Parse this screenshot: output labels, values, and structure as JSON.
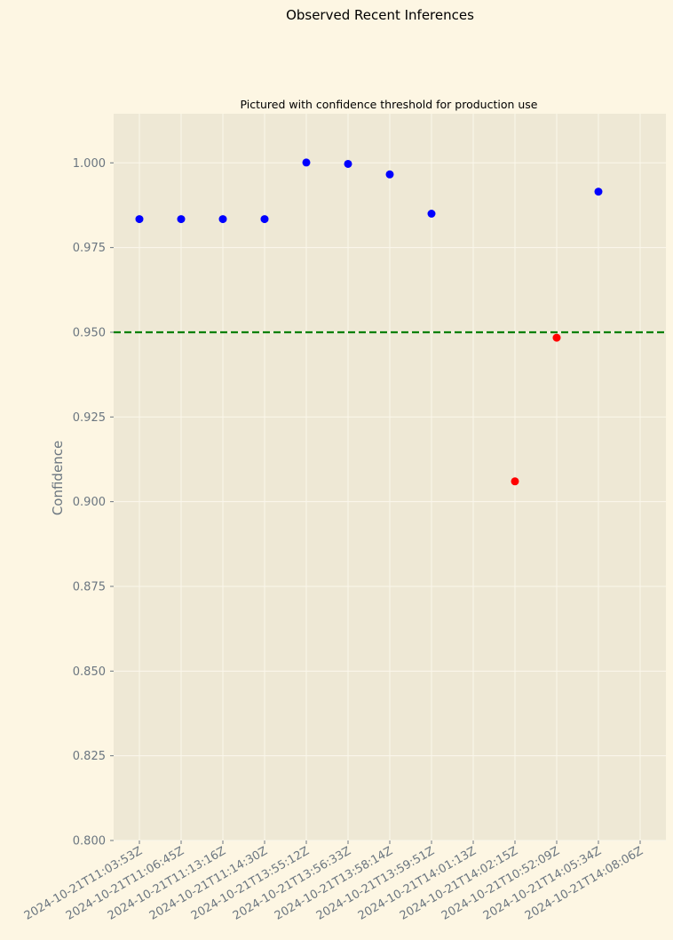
{
  "chart_data": {
    "type": "scatter",
    "suptitle": "Observed Recent Inferences",
    "title": "Pictured with confidence threshold for production use",
    "xlabel": "",
    "ylabel": "Confidence",
    "categories": [
      "2024-10-21T11:03:53Z",
      "2024-10-21T11:06:45Z",
      "2024-10-21T11:13:16Z",
      "2024-10-21T11:14:30Z",
      "2024-10-21T13:55:12Z",
      "2024-10-21T13:56:33Z",
      "2024-10-21T13:58:14Z",
      "2024-10-21T13:59:51Z",
      "2024-10-21T14:01:13Z",
      "2024-10-21T14:02:15Z",
      "2024-10-21T10:52:09Z",
      "2024-10-21T14:05:34Z",
      "2024-10-21T14:08:06Z"
    ],
    "points": [
      {
        "x": "2024-10-21T11:03:53Z",
        "y": 0.9834,
        "color": "#0000ff"
      },
      {
        "x": "2024-10-21T11:06:45Z",
        "y": 0.9834,
        "color": "#0000ff"
      },
      {
        "x": "2024-10-21T11:13:16Z",
        "y": 0.9834,
        "color": "#0000ff"
      },
      {
        "x": "2024-10-21T11:14:30Z",
        "y": 0.9834,
        "color": "#0000ff"
      },
      {
        "x": "2024-10-21T13:55:12Z",
        "y": 1.0001,
        "color": "#0000ff"
      },
      {
        "x": "2024-10-21T13:56:33Z",
        "y": 0.9997,
        "color": "#0000ff"
      },
      {
        "x": "2024-10-21T13:58:14Z",
        "y": 0.9966,
        "color": "#0000ff"
      },
      {
        "x": "2024-10-21T13:59:51Z",
        "y": 0.985,
        "color": "#0000ff"
      },
      {
        "x": "2024-10-21T14:02:15Z",
        "y": 0.906,
        "color": "#ff0000"
      },
      {
        "x": "2024-10-21T10:52:09Z",
        "y": 0.9484,
        "color": "#ff0000"
      },
      {
        "x": "2024-10-21T14:05:34Z",
        "y": 0.9915,
        "color": "#0000ff"
      }
    ],
    "threshold": {
      "y": 0.95,
      "color": "#008000",
      "style": "dashed"
    },
    "ylim": [
      0.8,
      1.0145
    ],
    "yticks": [
      0.8,
      0.825,
      0.85,
      0.875,
      0.9,
      0.925,
      0.95,
      0.975,
      1.0
    ],
    "ytick_labels": [
      "0.800",
      "0.825",
      "0.850",
      "0.875",
      "0.900",
      "0.925",
      "0.950",
      "0.975",
      "1.000"
    ],
    "grid": true,
    "colors": {
      "figure_background": "#fdf6e3",
      "axes_background": "#eee8d5",
      "grid": "#fbf7ec",
      "tick_text": "#6b7680"
    }
  }
}
